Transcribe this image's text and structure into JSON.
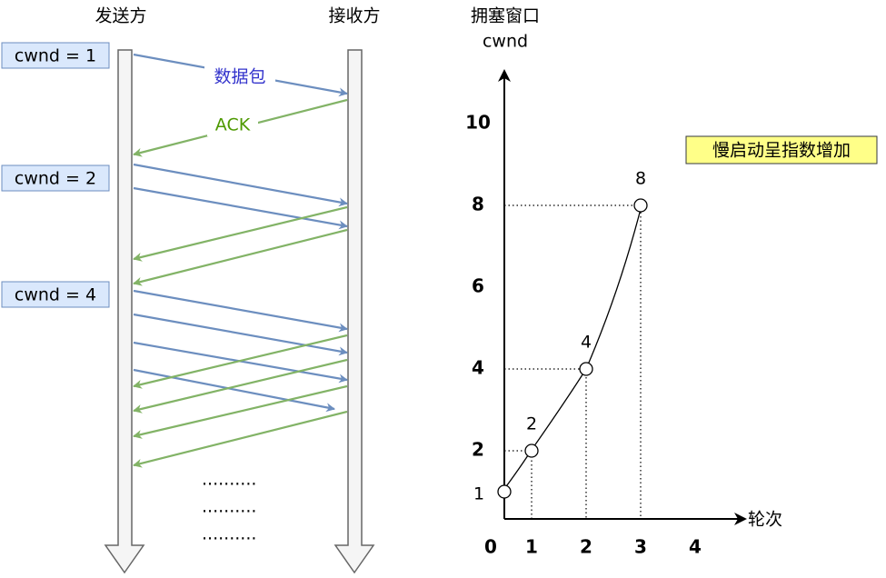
{
  "sender": "发送方",
  "receiver": "接收方",
  "cwnd_labels": [
    "cwnd = 1",
    "cwnd = 2",
    "cwnd = 4"
  ],
  "packet_label": "数据包",
  "ack_label": "ACK",
  "ellipsis": [
    "..........",
    "..........",
    ".........."
  ],
  "graph": {
    "y_title": "拥塞窗口",
    "y_unit": "cwnd",
    "x_title": "轮次",
    "annotation": "慢启动呈指数增加",
    "yticks": [
      2,
      4,
      6,
      8,
      10
    ],
    "xticks": [
      0,
      1,
      2,
      3,
      4
    ],
    "points": [
      {
        "x": 0,
        "y": 1
      },
      {
        "x": 1,
        "y": 2
      },
      {
        "x": 2,
        "y": 4
      },
      {
        "x": 3,
        "y": 8
      }
    ]
  }
}
